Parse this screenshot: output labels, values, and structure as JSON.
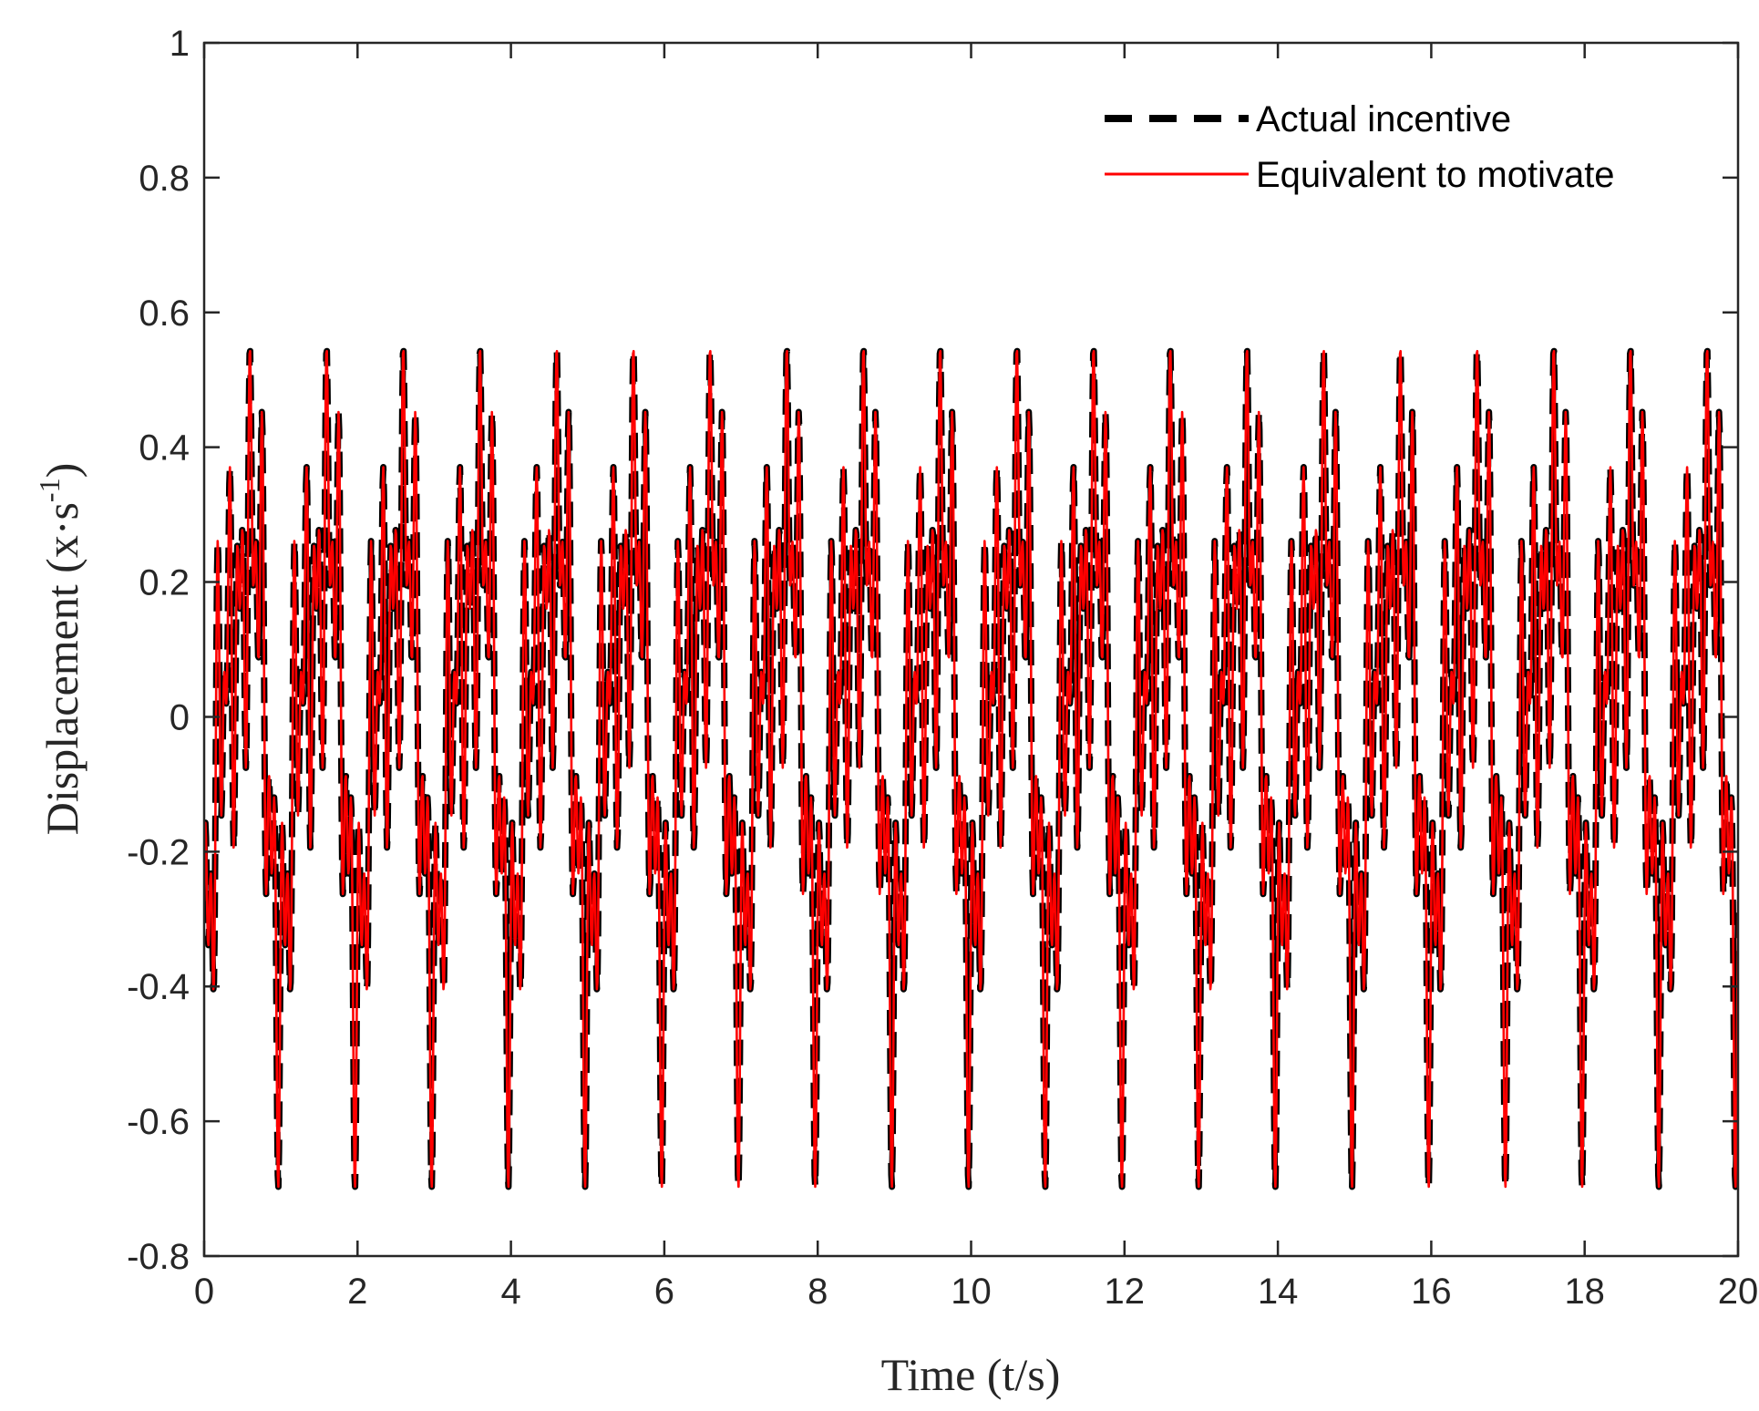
{
  "chart_data": {
    "type": "line",
    "title": "",
    "xlabel": "Time (t/s)",
    "ylabel": {
      "prefix": "Displacement (x·s",
      "superscript": "-1",
      "suffix": ")"
    },
    "xlim": [
      0,
      20
    ],
    "ylim": [
      -0.8,
      1
    ],
    "xticks": [
      0,
      2,
      4,
      6,
      8,
      10,
      12,
      14,
      16,
      18,
      20
    ],
    "xtick_labels": [
      "0",
      "2",
      "4",
      "6",
      "8",
      "10",
      "12",
      "14",
      "16",
      "18",
      "20"
    ],
    "yticks": [
      -0.8,
      -0.6,
      -0.4,
      -0.2,
      0,
      0.2,
      0.4,
      0.6,
      0.8,
      1
    ],
    "ytick_labels": [
      "-0.8",
      "-0.6",
      "-0.4",
      "-0.2",
      "0",
      "0.2",
      "0.4",
      "0.6",
      "0.8",
      "1"
    ],
    "grid": false,
    "legend_position": "top-right",
    "sample_step": 0.008,
    "series": [
      {
        "name": "Actual incentive",
        "color": "#000000",
        "style": "dashed",
        "model": {
          "components": [
            {
              "amplitude": 0.28,
              "frequency": 1.0,
              "phase": 4.55
            },
            {
              "amplitude": 0.13,
              "frequency": 2.0,
              "phase": 5.2
            },
            {
              "amplitude": 0.17,
              "frequency": 7.0,
              "phase": 0.0
            },
            {
              "amplitude": 0.14,
              "frequency": 12.0,
              "phase": 1.0
            }
          ]
        }
      },
      {
        "name": "Equivalent to motivate",
        "color": "#ff0000",
        "style": "solid",
        "model": {
          "components": [
            {
              "amplitude": 0.28,
              "frequency": 1.0,
              "phase": 4.55
            },
            {
              "amplitude": 0.13,
              "frequency": 2.0,
              "phase": 5.2
            },
            {
              "amplitude": 0.17,
              "frequency": 7.0,
              "phase": 0.0
            },
            {
              "amplitude": 0.14,
              "frequency": 12.0,
              "phase": 1.0
            }
          ]
        }
      }
    ]
  }
}
